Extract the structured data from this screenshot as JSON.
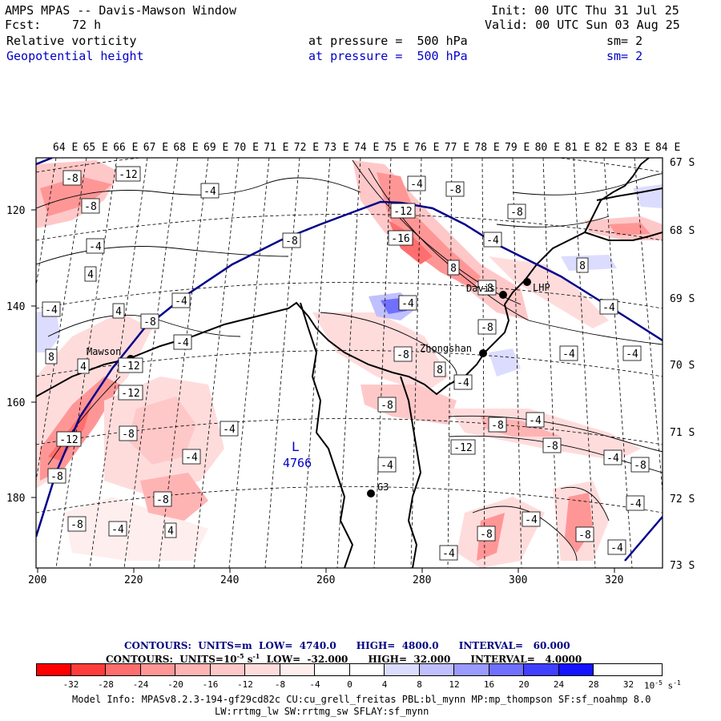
{
  "header": {
    "title": "AMPS MPAS -- Davis-Mawson Window",
    "init": "Init: 00 UTC Thu 31 Jul 25",
    "fcst_label": "Fcst:",
    "fcst_value": "72 h",
    "valid": "Valid: 00 UTC Sun 03 Aug 25",
    "field1_name": "Relative vorticity",
    "field1_level": "at pressure =  500 hPa",
    "field1_sm": "sm= 2",
    "field2_name": "Geopotential height",
    "field2_level": "at pressure =  500 hPa",
    "field2_sm": "sm= 2"
  },
  "axes": {
    "top_lon_labels": [
      "64 E",
      "65 E",
      "66 E",
      "67 E",
      "68 E",
      "69 E",
      "70 E",
      "71 E",
      "72 E",
      "73 E",
      "74 E",
      "75 E",
      "76 E",
      "77 E",
      "78 E",
      "79 E",
      "80 E",
      "81 E",
      "82 E",
      "83 E",
      "84 E"
    ],
    "right_lat_labels": [
      "67 S",
      "68 S",
      "69 S",
      "70 S",
      "71 S",
      "72 S",
      "73 S"
    ],
    "left_y_labels": [
      "120",
      "140",
      "160",
      "180"
    ],
    "bottom_x_labels": [
      "200",
      "220",
      "240",
      "260",
      "280",
      "300",
      "320"
    ]
  },
  "stations": [
    {
      "name": "Mawson"
    },
    {
      "name": "Davis"
    },
    {
      "name": "Zhongshan"
    },
    {
      "name": "G3"
    },
    {
      "name": "LHP"
    }
  ],
  "map_labels": {
    "low_marker": "L",
    "low_value": "4766"
  },
  "contour_labels": [
    "-8",
    "-12",
    "-8",
    "-4",
    "-4",
    "4",
    "-4",
    "-8",
    "-4",
    "-12",
    "4",
    "4",
    "-12",
    "-16",
    "8",
    "-4",
    "-8",
    "-4",
    "-8",
    "-12",
    "-8",
    "8",
    "-4",
    "8",
    "-4",
    "-8",
    "-8",
    "-8",
    "-12",
    "8",
    "-8",
    "-4",
    "-4",
    "-4",
    "-12",
    "-8",
    "-8",
    "-8",
    "-4",
    "4",
    "-8",
    "-4",
    "-8",
    "-4",
    "-4",
    "-4",
    "-8",
    "-4",
    "-4",
    "-8",
    "-4",
    "-8",
    "-4",
    "-8",
    "-4",
    "-4"
  ],
  "info": {
    "contours1": "CONTOURS:  UNITS=m  LOW=  4740.0      HIGH=  4800.0      INTERVAL=   60.000",
    "contours2_prefix": "CONTOURS:  UNITS=10",
    "contours2_exp": "-5",
    "contours2_unit": " s",
    "contours2_exp2": "-1",
    "contours2_suffix": "  LOW=  -32.000      HIGH=  32.000      INTERVAL=   4.0000",
    "model_info": "Model Info: MPASv8.2.3-194-gf29cd82c CU:cu_grell_freitas PBL:bl_mynn MP:mp_thompson SF:sf_noahmp 8.0",
    "model_info2": "LW:rrtmg_lw SW:rrtmg_sw SFLAY:sf_mynn"
  },
  "colorbar": {
    "colors": [
      "#ff0000",
      "#ff3c3c",
      "#ff6e6e",
      "#ff9696",
      "#ffb4b4",
      "#ffc8c8",
      "#ffdcdc",
      "#ffeeee",
      "#ffffff",
      "#ffffff",
      "#dcdcff",
      "#c0c0ff",
      "#9a9aff",
      "#7070ff",
      "#4040ff",
      "#1414ff",
      "#0000ff"
    ],
    "ticks": [
      "-32",
      "-28",
      "-24",
      "-20",
      "-16",
      "-12",
      "-8",
      "-4",
      "0",
      "4",
      "8",
      "12",
      "16",
      "20",
      "24",
      "28",
      "32"
    ],
    "units_base": "10",
    "units_exp": "-5",
    "units_s": " s",
    "units_exp2": "-1"
  }
}
